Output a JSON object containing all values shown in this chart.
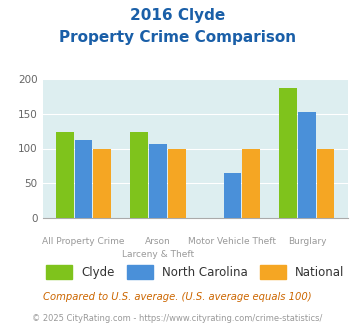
{
  "title_line1": "2016 Clyde",
  "title_line2": "Property Crime Comparison",
  "cat_labels_top": [
    "All Property Crime",
    "Arson",
    "Motor Vehicle Theft",
    "Burglary"
  ],
  "cat_labels_bot": [
    "",
    "Larceny & Theft",
    "",
    ""
  ],
  "clyde": [
    124,
    124,
    0,
    188
  ],
  "nc": [
    112,
    107,
    65,
    152
  ],
  "national": [
    100,
    100,
    100,
    100
  ],
  "clyde_color": "#7fc31c",
  "nc_color": "#4a90d9",
  "national_color": "#f5a623",
  "bg_color": "#ddeef0",
  "ylim": [
    0,
    200
  ],
  "yticks": [
    0,
    50,
    100,
    150,
    200
  ],
  "title_color": "#1a5fa8",
  "label_color": "#999999",
  "footnote1": "Compared to U.S. average. (U.S. average equals 100)",
  "footnote2": "© 2025 CityRating.com - https://www.cityrating.com/crime-statistics/",
  "footnote1_color": "#cc6600",
  "footnote2_color": "#999999",
  "legend_labels": [
    "Clyde",
    "North Carolina",
    "National"
  ]
}
